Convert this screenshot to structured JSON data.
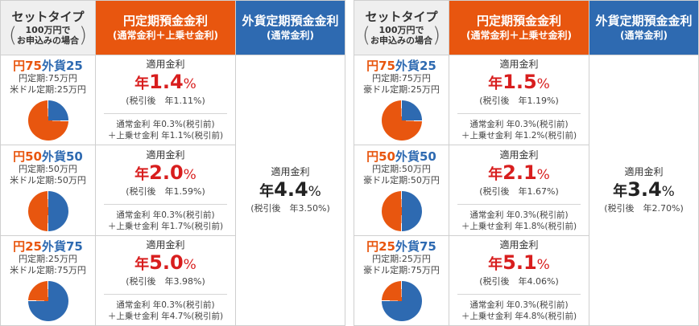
{
  "header": {
    "col1_title": "セットタイプ",
    "col1_note_line1": "100万円で",
    "col1_note_line2": "お申込みの場合",
    "col2_title": "円定期預金金利",
    "col2_sub": "(通常金利＋上乗せ金利)",
    "col3_title": "外貨定期預金金利",
    "col3_sub": "(通常金利)"
  },
  "colors": {
    "yen": "#e8560f",
    "foreign": "#2e6ab1",
    "rate_red": "#d81e1e"
  },
  "tables": [
    {
      "currency": "米ドル",
      "foreign_rate": {
        "label": "適用金利",
        "nen": "年",
        "value": "4.4",
        "pct": "%",
        "after_tax": "(税引後　年3.50%)"
      },
      "rows": [
        {
          "yen_label": "円75",
          "fx_label": "外貨25",
          "yen_line": "円定期:75万円",
          "fx_line": "米ドル定期:25万円",
          "yen_share": 75,
          "rate_label": "適用金利",
          "nen": "年",
          "rate": "1.4",
          "pct": "%",
          "after_tax": "(税引後　年1.11%)",
          "detail1": "通常金利 年0.3%(税引前)",
          "detail2": "＋上乗せ金利 年1.1%(税引前)"
        },
        {
          "yen_label": "円50",
          "fx_label": "外貨50",
          "yen_line": "円定期:50万円",
          "fx_line": "米ドル定期:50万円",
          "yen_share": 50,
          "rate_label": "適用金利",
          "nen": "年",
          "rate": "2.0",
          "pct": "%",
          "after_tax": "(税引後　年1.59%)",
          "detail1": "通常金利 年0.3%(税引前)",
          "detail2": "＋上乗せ金利 年1.7%(税引前)"
        },
        {
          "yen_label": "円25",
          "fx_label": "外貨75",
          "yen_line": "円定期:25万円",
          "fx_line": "米ドル定期:75万円",
          "yen_share": 25,
          "rate_label": "適用金利",
          "nen": "年",
          "rate": "5.0",
          "pct": "%",
          "after_tax": "(税引後　年3.98%)",
          "detail1": "通常金利 年0.3%(税引前)",
          "detail2": "＋上乗せ金利 年4.7%(税引前)"
        }
      ]
    },
    {
      "currency": "豪ドル",
      "foreign_rate": {
        "label": "適用金利",
        "nen": "年",
        "value": "3.4",
        "pct": "%",
        "after_tax": "(税引後　年2.70%)"
      },
      "rows": [
        {
          "yen_label": "円75",
          "fx_label": "外貨25",
          "yen_line": "円定期:75万円",
          "fx_line": "豪ドル定期:25万円",
          "yen_share": 75,
          "rate_label": "適用金利",
          "nen": "年",
          "rate": "1.5",
          "pct": "%",
          "after_tax": "(税引後　年1.19%)",
          "detail1": "通常金利 年0.3%(税引前)",
          "detail2": "＋上乗せ金利 年1.2%(税引前)"
        },
        {
          "yen_label": "円50",
          "fx_label": "外貨50",
          "yen_line": "円定期:50万円",
          "fx_line": "豪ドル定期:50万円",
          "yen_share": 50,
          "rate_label": "適用金利",
          "nen": "年",
          "rate": "2.1",
          "pct": "%",
          "after_tax": "(税引後　年1.67%)",
          "detail1": "通常金利 年0.3%(税引前)",
          "detail2": "＋上乗せ金利 年1.8%(税引前)"
        },
        {
          "yen_label": "円25",
          "fx_label": "外貨75",
          "yen_line": "円定期:25万円",
          "fx_line": "豪ドル定期:75万円",
          "yen_share": 25,
          "rate_label": "適用金利",
          "nen": "年",
          "rate": "5.1",
          "pct": "%",
          "after_tax": "(税引後　年4.06%)",
          "detail1": "通常金利 年0.3%(税引前)",
          "detail2": "＋上乗せ金利 年4.8%(税引前)"
        }
      ]
    }
  ]
}
